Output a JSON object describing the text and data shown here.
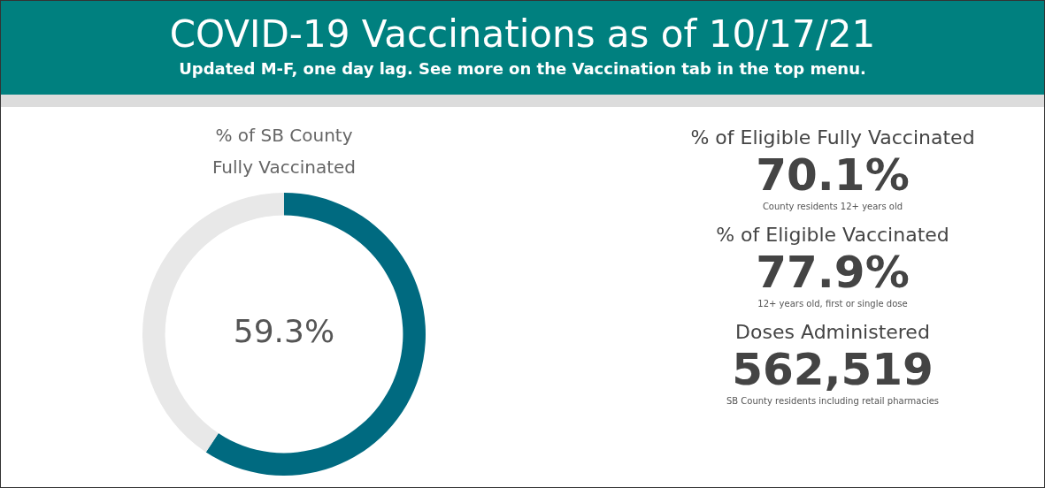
{
  "chart_data": [
    {
      "type": "other",
      "title": "COVID-19 Vaccinations as of 10/17/21",
      "subtitle": "Updated M-F, one day lag. See more on the Vaccination tab in the top menu."
    },
    {
      "type": "donut",
      "title": "% of SB County Fully Vaccinated",
      "categories": [
        null,
        null
      ],
      "values": [
        59.3,
        40.7
      ],
      "colors": [
        "#006a80",
        "#e8e8e8"
      ],
      "value_labels": [
        "59.3%",
        null
      ],
      "legend": false
    },
    {
      "type": "other",
      "annotations": [
        "% of Eligible Fully Vaccinated",
        "70.1%",
        "County residents 12+ years old",
        "% of Eligible Vaccinated",
        "77.9%",
        "12+ years old, first or single dose",
        "Doses Administered",
        "562,519",
        "SB County residents including retail pharmacies"
      ]
    }
  ]
}
